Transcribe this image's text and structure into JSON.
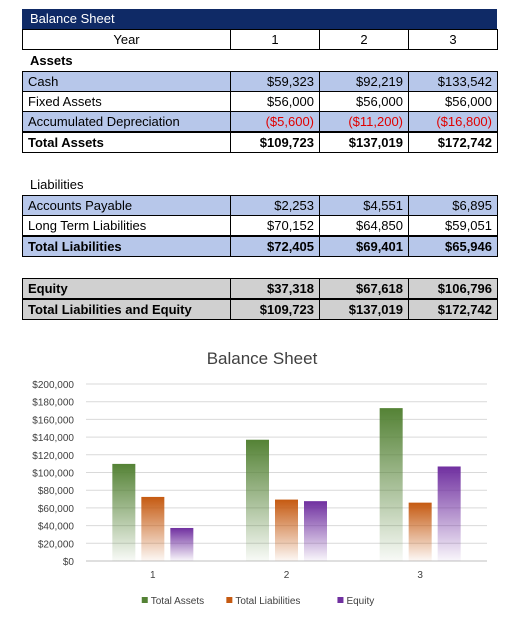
{
  "sheet": {
    "title": "Balance Sheet",
    "header": {
      "label": "Year",
      "years": [
        "1",
        "2",
        "3"
      ]
    },
    "assets": {
      "label": "Assets",
      "rows": [
        {
          "label": "Cash",
          "values": [
            "$59,323",
            "$92,219",
            "$133,542"
          ]
        },
        {
          "label": "Fixed Assets",
          "values": [
            "$56,000",
            "$56,000",
            "$56,000"
          ]
        },
        {
          "label": "Accumulated Depreciation",
          "values": [
            "($5,600)",
            "($11,200)",
            "($16,800)"
          ]
        }
      ],
      "total": {
        "label": "Total Assets",
        "values": [
          "$109,723",
          "$137,019",
          "$172,742"
        ]
      }
    },
    "liabilities": {
      "label": "Liabilities",
      "rows": [
        {
          "label": "Accounts Payable",
          "values": [
            "$2,253",
            "$4,551",
            "$6,895"
          ]
        },
        {
          "label": "Long Term Liabilities",
          "values": [
            "$70,152",
            "$64,850",
            "$59,051"
          ]
        }
      ],
      "total": {
        "label": "Total Liabilities",
        "values": [
          "$72,405",
          "$69,401",
          "$65,946"
        ]
      }
    },
    "equity": {
      "row": {
        "label": "Equity",
        "values": [
          "$37,318",
          "$67,618",
          "$106,796"
        ]
      },
      "total": {
        "label": "Total Liabilities and Equity",
        "values": [
          "$109,723",
          "$137,019",
          "$172,742"
        ]
      }
    },
    "colors": {
      "title_bar": "#0f2a66",
      "blue_row": "#b7c7ea",
      "grey_row": "#d0d0d0",
      "negative": "#e00000"
    }
  },
  "chart_data": {
    "type": "bar",
    "title": "Balance Sheet",
    "categories": [
      "1",
      "2",
      "3"
    ],
    "series": [
      {
        "name": "Total Assets",
        "values": [
          109723,
          137019,
          172742
        ],
        "color": "#548235"
      },
      {
        "name": "Total Liabilities",
        "values": [
          72405,
          69401,
          65946
        ],
        "color": "#c55a11"
      },
      {
        "name": "Equity",
        "values": [
          37318,
          67618,
          106796
        ],
        "color": "#7030a0"
      }
    ],
    "ylim": [
      0,
      200000
    ],
    "yticks": [
      "$0",
      "$20,000",
      "$40,000",
      "$60,000",
      "$80,000",
      "$100,000",
      "$120,000",
      "$140,000",
      "$160,000",
      "$180,000",
      "$200,000"
    ],
    "grid": true,
    "legend": "bottom",
    "xlabel": "",
    "ylabel": ""
  }
}
